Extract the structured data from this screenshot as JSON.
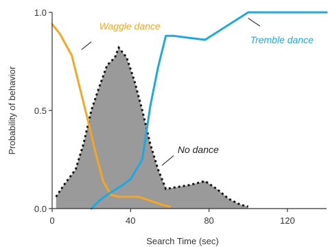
{
  "chart_data": {
    "type": "line",
    "title": "",
    "xlabel": "Search Time (sec)",
    "ylabel": "Probability of behavior",
    "xlim": [
      0,
      140
    ],
    "ylim": [
      0,
      1.0
    ],
    "x_ticks": [
      "0",
      "40",
      "80",
      "120"
    ],
    "y_ticks": [
      "0.0",
      "0.5",
      "1.0"
    ],
    "x_tick_values": [
      0,
      40,
      80,
      120
    ],
    "y_tick_values": [
      0,
      0.5,
      1.0
    ],
    "grid": false,
    "series": [
      {
        "name": "No dance",
        "style": "area-dotted",
        "color": "#9a9a9a",
        "points": [
          [
            2,
            0.06
          ],
          [
            6,
            0.12
          ],
          [
            12,
            0.2
          ],
          [
            16,
            0.33
          ],
          [
            20,
            0.5
          ],
          [
            24,
            0.62
          ],
          [
            28,
            0.73
          ],
          [
            32,
            0.77
          ],
          [
            34,
            0.82
          ],
          [
            38,
            0.77
          ],
          [
            42,
            0.65
          ],
          [
            46,
            0.5
          ],
          [
            50,
            0.33
          ],
          [
            54,
            0.2
          ],
          [
            58,
            0.1
          ],
          [
            64,
            0.11
          ],
          [
            70,
            0.12
          ],
          [
            78,
            0.14
          ],
          [
            84,
            0.1
          ],
          [
            90,
            0.05
          ],
          [
            96,
            0.02
          ],
          [
            100,
            0.01
          ]
        ]
      },
      {
        "name": "Waggle dance",
        "style": "line",
        "color": "#f5a623",
        "points": [
          [
            0,
            0.94
          ],
          [
            4,
            0.89
          ],
          [
            10,
            0.78
          ],
          [
            14,
            0.62
          ],
          [
            18,
            0.46
          ],
          [
            22,
            0.29
          ],
          [
            26,
            0.14
          ],
          [
            30,
            0.07
          ],
          [
            34,
            0.06
          ],
          [
            40,
            0.06
          ],
          [
            44,
            0.06
          ],
          [
            50,
            0.04
          ],
          [
            56,
            0.02
          ],
          [
            60,
            0.01
          ]
        ]
      },
      {
        "name": "Tremble dance",
        "style": "line",
        "color": "#1ea8e0",
        "points": [
          [
            20,
            0.0
          ],
          [
            24,
            0.04
          ],
          [
            28,
            0.07
          ],
          [
            36,
            0.12
          ],
          [
            40,
            0.15
          ],
          [
            46,
            0.25
          ],
          [
            50,
            0.52
          ],
          [
            54,
            0.72
          ],
          [
            58,
            0.88
          ],
          [
            62,
            0.88
          ],
          [
            70,
            0.87
          ],
          [
            78,
            0.86
          ],
          [
            100,
            1.0
          ],
          [
            140,
            1.0
          ]
        ]
      }
    ],
    "annotations": {
      "waggle": {
        "text": "Waggle dance",
        "x": 24,
        "y": 0.93,
        "color": "#f5a623",
        "leader": [
          [
            20,
            0.85
          ],
          [
            15,
            0.81
          ]
        ]
      },
      "tremble": {
        "text": "Tremble dance",
        "x": 101,
        "y": 0.86,
        "color": "#1ea8e0",
        "leader": [
          [
            100,
            0.97
          ],
          [
            106,
            0.93
          ]
        ]
      },
      "nodance": {
        "text": "No dance",
        "x": 64,
        "y": 0.3,
        "color": "#222222",
        "leader": [
          [
            62,
            0.27
          ],
          [
            56,
            0.22
          ]
        ]
      }
    }
  }
}
